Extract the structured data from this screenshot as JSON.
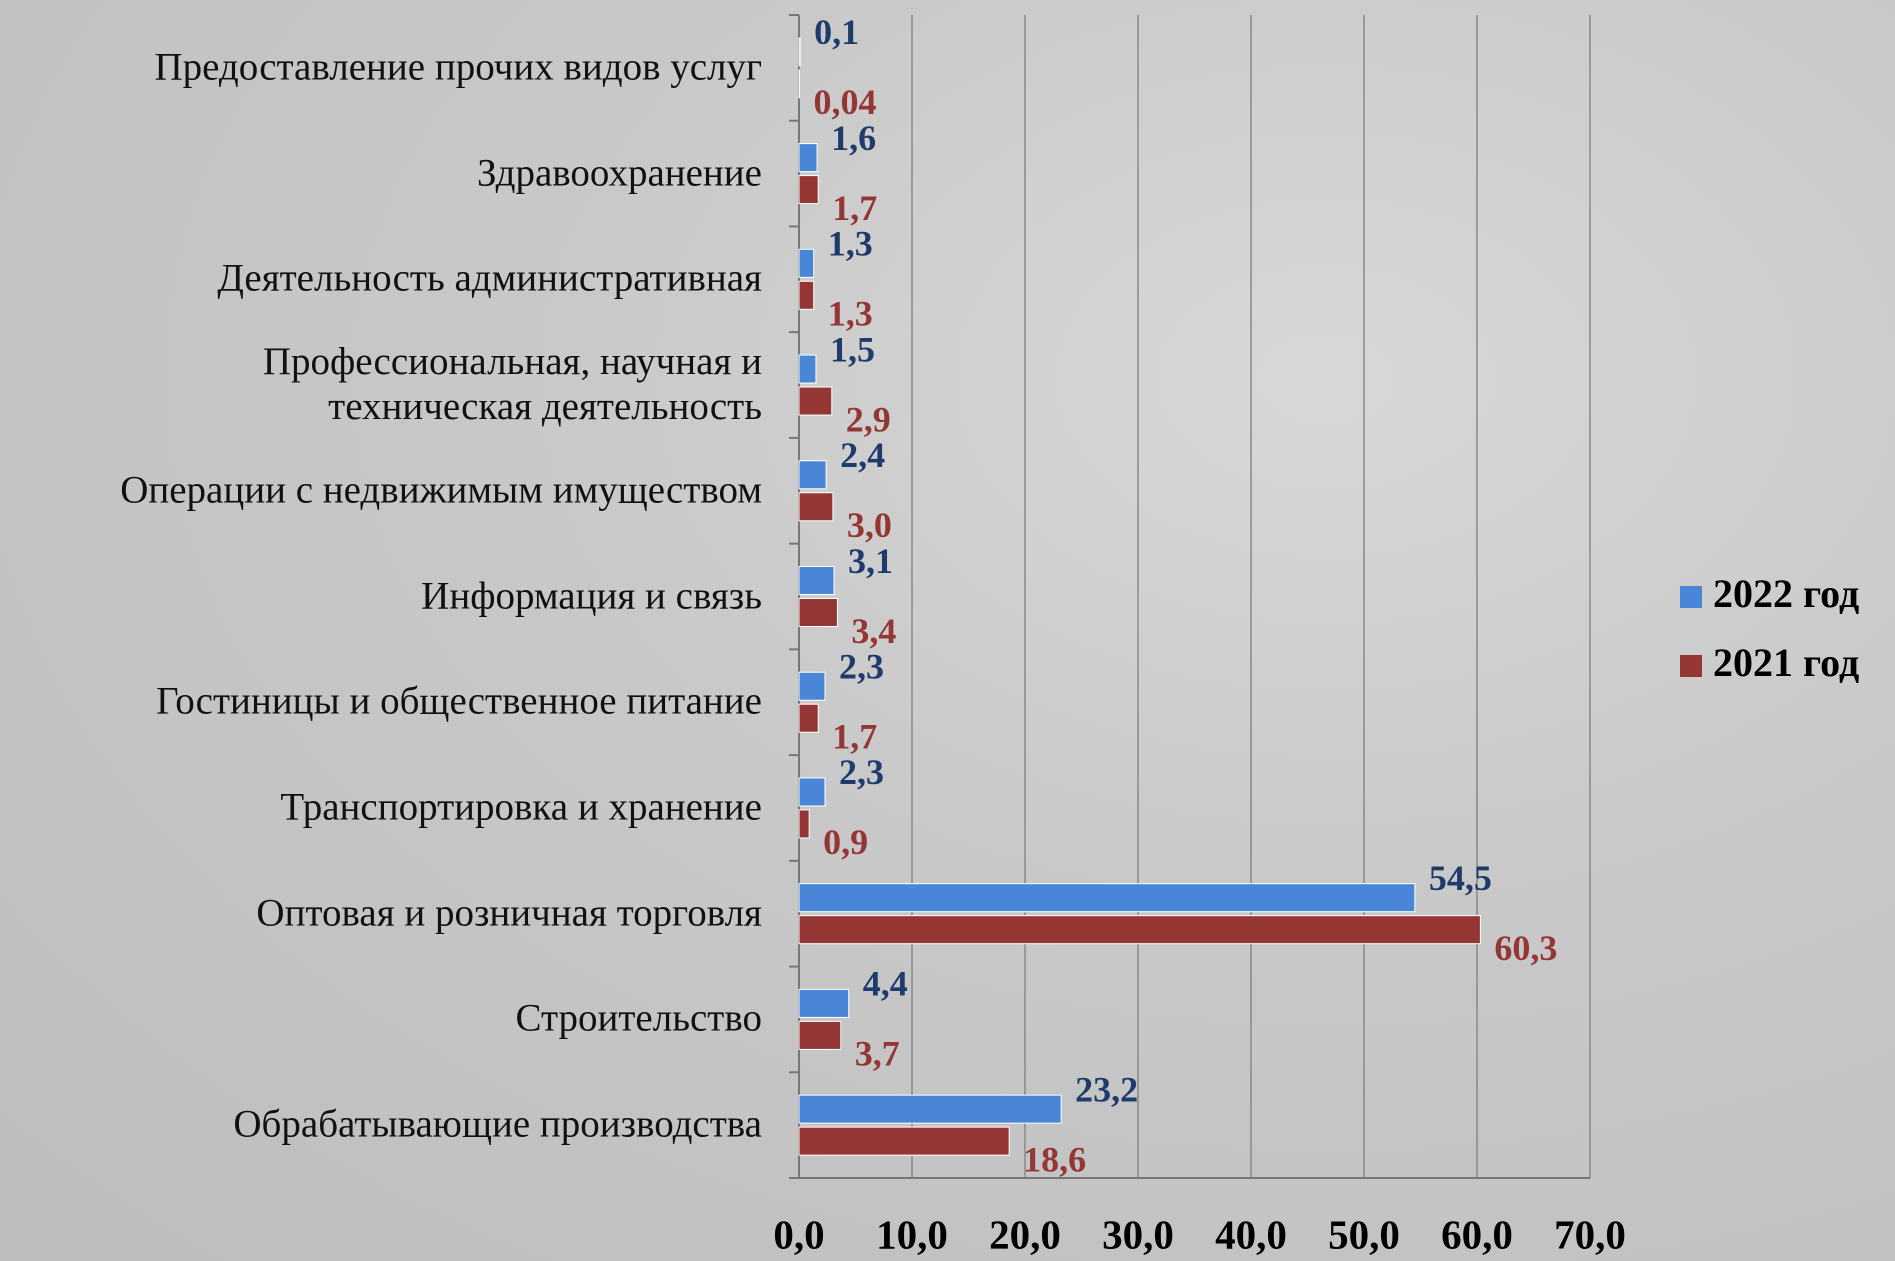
{
  "chart_data": {
    "type": "bar",
    "orientation": "horizontal",
    "categories": [
      "Предоставление прочих видов услуг",
      "Здравоохранение",
      "Деятельность административная",
      "Профессиональная, научная и\nтехническая деятельность",
      "Операции с недвижимым имуществом",
      "Информация и связь",
      "Гостиницы и общественное питание",
      "Транспортировка и хранение",
      "Оптовая и розничная торговля",
      "Строительство",
      "Обрабатывающие производства"
    ],
    "series": [
      {
        "name": "2022 год",
        "color": "#4a86d8",
        "label_color": "#1f3b6b",
        "values": [
          0.1,
          1.6,
          1.3,
          1.5,
          2.4,
          3.1,
          2.3,
          2.3,
          54.5,
          4.4,
          23.2
        ],
        "value_labels": [
          "0,1",
          "1,6",
          "1,3",
          "1,5",
          "2,4",
          "3,1",
          "2,3",
          "2,3",
          "54,5",
          "4,4",
          "23,2"
        ]
      },
      {
        "name": "2021 год",
        "color": "#943634",
        "label_color": "#943634",
        "values": [
          0.04,
          1.7,
          1.3,
          2.9,
          3.0,
          3.4,
          1.7,
          0.9,
          60.3,
          3.7,
          18.6
        ],
        "value_labels": [
          "0,04",
          "1,7",
          "1,3",
          "2,9",
          "3,0",
          "3,4",
          "1,7",
          "0,9",
          "60,3",
          "3,7",
          "18,6"
        ]
      }
    ],
    "xlim": [
      0,
      70
    ],
    "xticks": [
      {
        "value": 0,
        "label": "0,0"
      },
      {
        "value": 10,
        "label": "10,0"
      },
      {
        "value": 20,
        "label": "20,0"
      },
      {
        "value": 30,
        "label": "30,0"
      },
      {
        "value": 40,
        "label": "40,0"
      },
      {
        "value": 50,
        "label": "50,0"
      },
      {
        "value": 60,
        "label": "60,0"
      },
      {
        "value": 70,
        "label": "70,0"
      }
    ],
    "grid": true,
    "legend_position": "right"
  }
}
